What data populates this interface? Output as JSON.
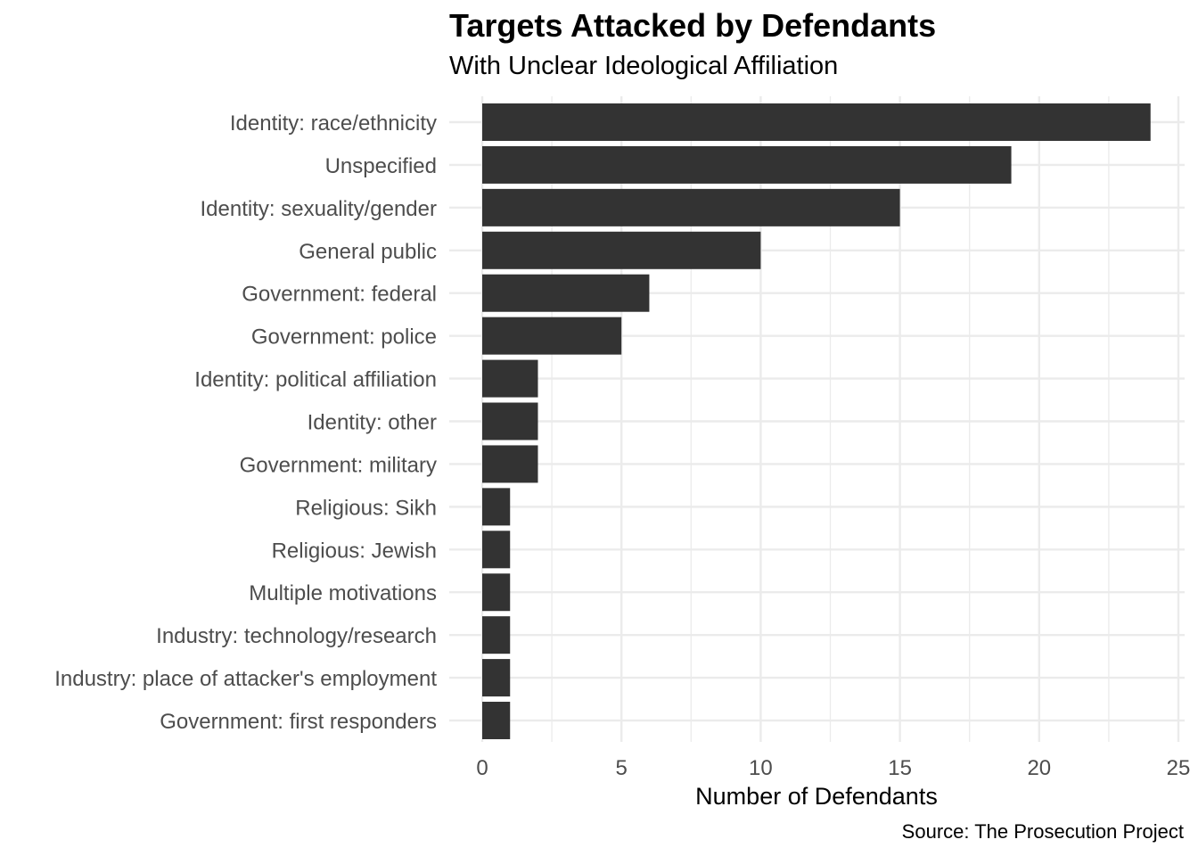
{
  "chart_data": {
    "type": "bar",
    "orientation": "horizontal",
    "title": "Targets Attacked by Defendants",
    "subtitle": "With Unclear Ideological Affiliation",
    "xlabel": "Number of Defendants",
    "ylabel": "",
    "caption": "Source: The Prosecution Project",
    "categories": [
      "Identity: race/ethnicity",
      "Unspecified",
      "Identity: sexuality/gender",
      "General public",
      "Government: federal",
      "Government: police",
      "Identity: political affiliation",
      "Identity: other",
      "Government: military",
      "Religious: Sikh",
      "Religious: Jewish",
      "Multiple motivations",
      "Industry: technology/research",
      "Industry: place of attacker's employment",
      "Government: first responders"
    ],
    "values": [
      24,
      19,
      15,
      10,
      6,
      5,
      2,
      2,
      2,
      1,
      1,
      1,
      1,
      1,
      1
    ],
    "xlim": [
      0,
      25
    ],
    "xticks": [
      0,
      5,
      10,
      15,
      20,
      25
    ],
    "grid": true,
    "bar_color": "#333333",
    "grid_color": "#ebebeb",
    "legend": "none"
  }
}
